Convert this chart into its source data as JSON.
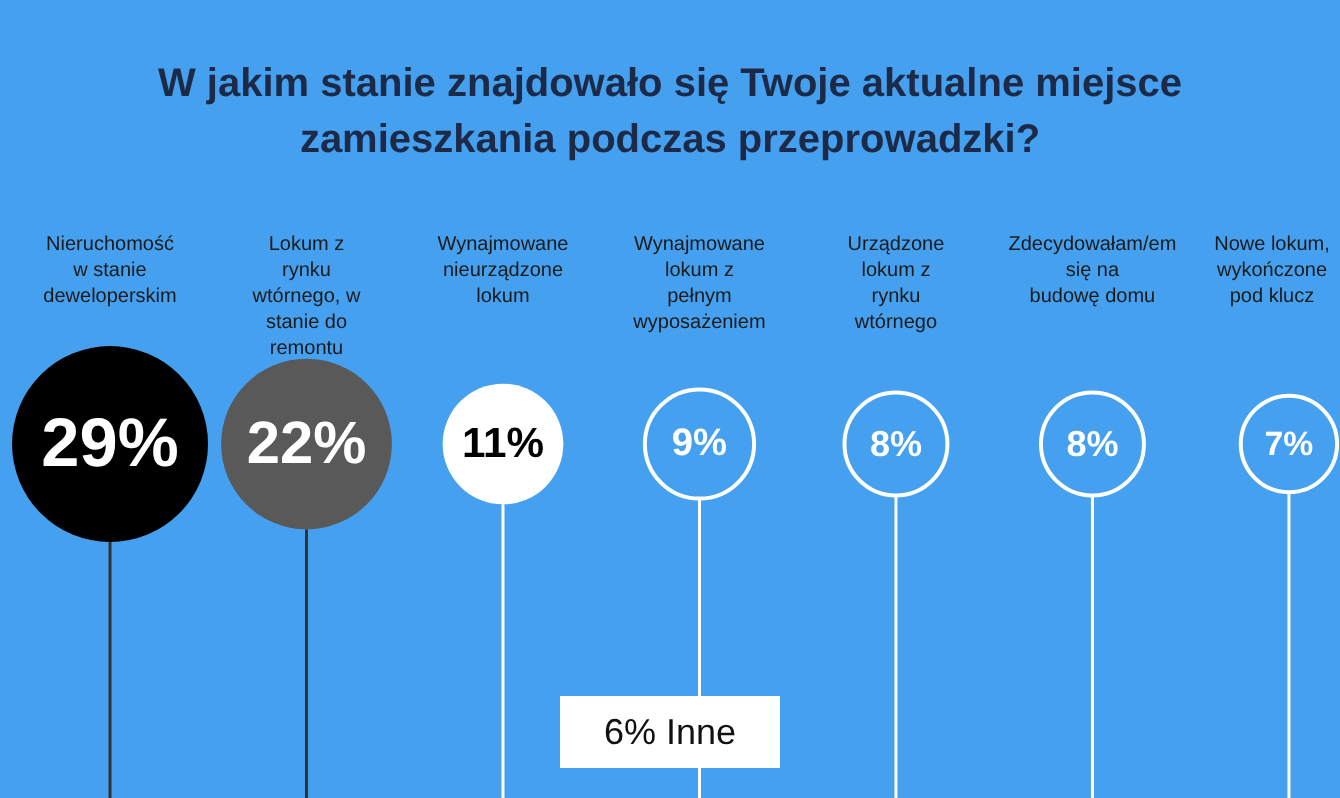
{
  "chart_data": {
    "type": "other",
    "title": "W jakim stanie znajdowało się Twoje aktualne miejsce zamieszkania podczas przeprowadzki?",
    "categories": [
      "Nieruchomość w stanie deweloperskim",
      "Lokum z rynku wtórnego, w stanie do remontu",
      "Wynajmowane nieurządzone lokum",
      "Wynajmowane lokum z pełnym wyposażeniem",
      "Urządzone lokum z rynku wtórnego",
      "Zdecydowałam/em się na budowę domu",
      "Nowe lokum, wykończone pod klucz"
    ],
    "values": [
      29,
      22,
      11,
      9,
      8,
      8,
      7
    ],
    "value_labels": [
      "29%",
      "22%",
      "11%",
      "9%",
      "8%",
      "8%",
      "7%"
    ],
    "colors": [
      "#000000",
      "#595959",
      "#ffffff",
      "#45a1ef",
      "#45a1ef",
      "#45a1ef",
      "#45a1ef"
    ],
    "annotations": [
      "6% Inne"
    ]
  }
}
